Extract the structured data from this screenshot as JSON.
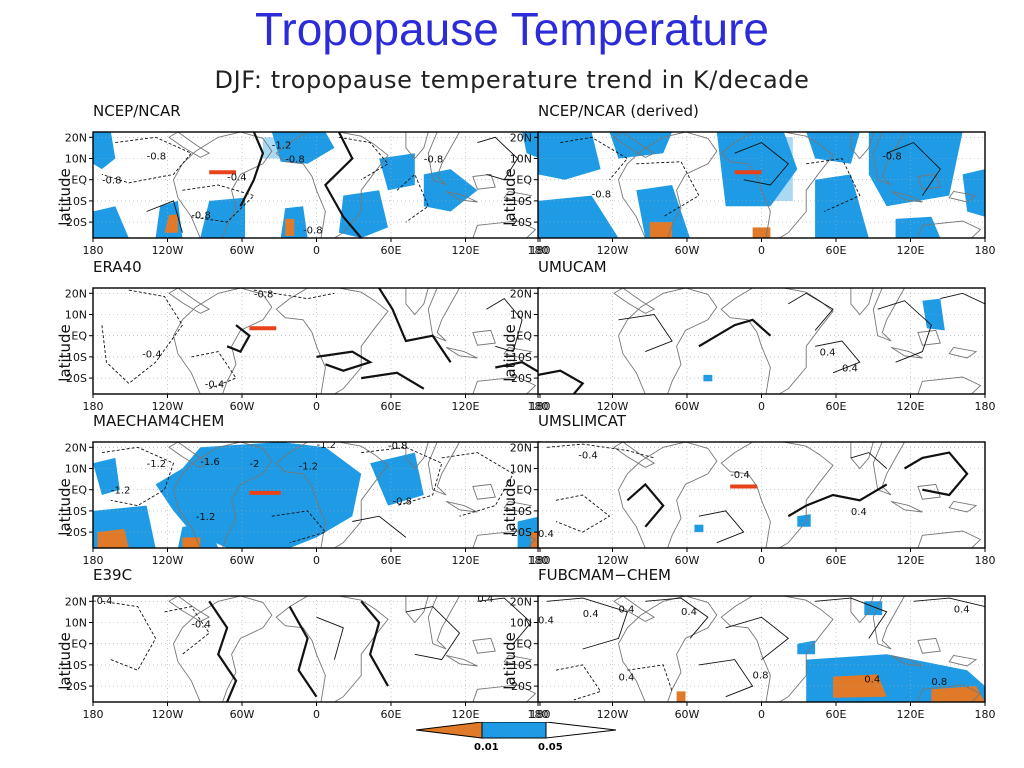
{
  "slide_title": "Tropopause Temperature",
  "figure_title": "DJF: tropopause temperature trend in K/decade",
  "ylabel": "latitude",
  "colors": {
    "sig01": "#e07a28",
    "sig05": "#1e9be4",
    "box": "#a9d9f3",
    "marker": "#e8421b"
  },
  "chart_data": [
    {
      "type": "heatmap",
      "title": "NCEP/NCAR",
      "x_ticks": [
        "180",
        "120W",
        "60W",
        "0",
        "60E",
        "120E",
        "180"
      ],
      "y_ticks": [
        "20N",
        "10N",
        "EQ",
        "10S",
        "20S"
      ],
      "contour_labels": [
        "-0.8",
        "-0.8",
        "-1.2",
        "-0.8",
        "-0.4",
        "-0.8",
        "-0.8",
        "-0.8"
      ],
      "grid": true
    },
    {
      "type": "heatmap",
      "title": "NCEP/NCAR (derived)",
      "x_ticks": [
        "180",
        "120W",
        "60W",
        "0",
        "60E",
        "120E",
        "180"
      ],
      "y_ticks": [
        "20N",
        "10N",
        "EQ",
        "10S",
        "20S"
      ],
      "contour_labels": [
        "-0.8",
        "-0.8"
      ],
      "grid": true
    },
    {
      "type": "heatmap",
      "title": "ERA40",
      "x_ticks": [
        "180",
        "120W",
        "60W",
        "0",
        "60E",
        "120E",
        "180"
      ],
      "y_ticks": [
        "20N",
        "10N",
        "EQ",
        "10S",
        "20S"
      ],
      "contour_labels": [
        "-0.8",
        "-0.4",
        "-0.4"
      ],
      "grid": true
    },
    {
      "type": "heatmap",
      "title": "UMUCAM",
      "x_ticks": [
        "180",
        "120W",
        "60W",
        "0",
        "60E",
        "120E",
        "180"
      ],
      "y_ticks": [
        "20N",
        "10N",
        "EQ",
        "10S",
        "20S"
      ],
      "contour_labels": [
        "0.4",
        "0.4"
      ],
      "grid": true
    },
    {
      "type": "heatmap",
      "title": "MAECHAM4CHEM",
      "x_ticks": [
        "180",
        "120W",
        "60W",
        "0",
        "60E",
        "120E",
        "180"
      ],
      "y_ticks": [
        "20N",
        "10N",
        "EQ",
        "10S",
        "20S"
      ],
      "contour_labels": [
        "-1.2",
        "-1.6",
        "-2",
        "-1.2",
        "-1.2",
        "-0.8",
        "-1.2",
        "-0.8",
        "-1.2"
      ],
      "grid": true
    },
    {
      "type": "heatmap",
      "title": "UMSLIMCAT",
      "x_ticks": [
        "180",
        "120W",
        "60W",
        "0",
        "60E",
        "120E",
        "180"
      ],
      "y_ticks": [
        "20N",
        "10N",
        "EQ",
        "10S",
        "20S"
      ],
      "contour_labels": [
        "-0.4",
        "-0.4",
        "0.4",
        "0.4"
      ],
      "grid": true
    },
    {
      "type": "heatmap",
      "title": "E39C",
      "x_ticks": [
        "180",
        "120W",
        "60W",
        "0",
        "60E",
        "120E",
        "180"
      ],
      "y_ticks": [
        "20N",
        "10N",
        "EQ",
        "10S",
        "20S"
      ],
      "contour_labels": [
        "-0.4",
        "-0.4",
        "0.4"
      ],
      "grid": true
    },
    {
      "type": "heatmap",
      "title": "FUBCMAM−CHEM",
      "x_ticks": [
        "180",
        "120W",
        "60W",
        "0",
        "60E",
        "120E",
        "180"
      ],
      "y_ticks": [
        "20N",
        "10N",
        "EQ",
        "10S",
        "20S"
      ],
      "contour_labels": [
        "0.4",
        "0.4",
        "0.4",
        "0.4",
        "0.4",
        "0.4",
        "0.8",
        "0.8",
        "0.4"
      ],
      "grid": true
    }
  ],
  "colorbar": {
    "labels": [
      "0.01",
      "0.05"
    ]
  }
}
